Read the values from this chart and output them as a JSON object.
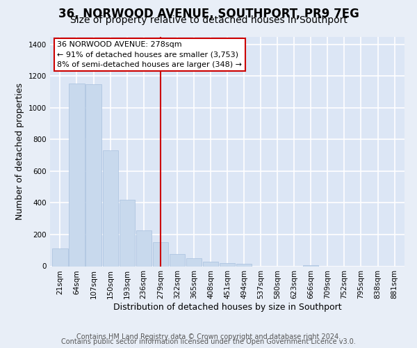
{
  "title": "36, NORWOOD AVENUE, SOUTHPORT, PR9 7EG",
  "subtitle": "Size of property relative to detached houses in Southport",
  "xlabel": "Distribution of detached houses by size in Southport",
  "ylabel": "Number of detached properties",
  "bar_labels": [
    "21sqm",
    "64sqm",
    "107sqm",
    "150sqm",
    "193sqm",
    "236sqm",
    "279sqm",
    "322sqm",
    "365sqm",
    "408sqm",
    "451sqm",
    "494sqm",
    "537sqm",
    "580sqm",
    "623sqm",
    "666sqm",
    "709sqm",
    "752sqm",
    "795sqm",
    "838sqm",
    "881sqm"
  ],
  "bar_heights": [
    110,
    1155,
    1150,
    730,
    420,
    225,
    150,
    75,
    50,
    30,
    18,
    15,
    0,
    0,
    0,
    8,
    0,
    0,
    0,
    0,
    0
  ],
  "bar_color": "#c8d9ed",
  "bar_edge_color": "#a8c0de",
  "vline_x": 6,
  "vline_color": "#cc0000",
  "annotation_title": "36 NORWOOD AVENUE: 278sqm",
  "annotation_line1": "← 91% of detached houses are smaller (3,753)",
  "annotation_line2": "8% of semi-detached houses are larger (348) →",
  "annotation_box_facecolor": "#ffffff",
  "annotation_box_edgecolor": "#cc0000",
  "ylim": [
    0,
    1450
  ],
  "yticks": [
    0,
    200,
    400,
    600,
    800,
    1000,
    1200,
    1400
  ],
  "footer1": "Contains HM Land Registry data © Crown copyright and database right 2024.",
  "footer2": "Contains public sector information licensed under the Open Government Licence v3.0.",
  "bg_color": "#e8eef7",
  "plot_bg_color": "#dce6f5",
  "grid_color": "#ffffff",
  "title_fontsize": 12,
  "subtitle_fontsize": 10,
  "axis_label_fontsize": 9,
  "tick_fontsize": 7.5,
  "annotation_fontsize": 8,
  "footer_fontsize": 7
}
